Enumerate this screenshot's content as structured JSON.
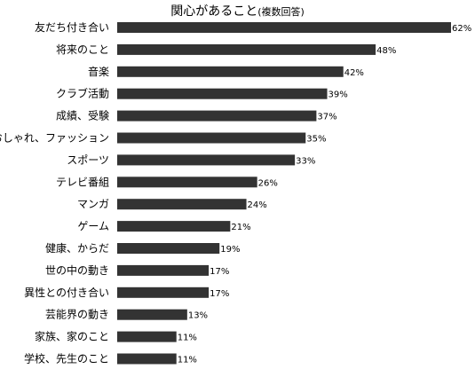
{
  "chart_data": {
    "type": "bar",
    "orientation": "horizontal",
    "title": "関心があること",
    "subtitle": "(複数回答)",
    "categories": [
      "友だち付き合い",
      "将来のこと",
      "音楽",
      "クラブ活動",
      "成績、受験",
      "おしゃれ、ファッション",
      "スポーツ",
      "テレビ番組",
      "マンガ",
      "ゲーム",
      "健康、からだ",
      "世の中の動き",
      "異性との付き合い",
      "芸能界の動き",
      "家族、家のこと",
      "学校、先生のこと"
    ],
    "values": [
      62,
      48,
      42,
      39,
      37,
      35,
      33,
      26,
      24,
      21,
      19,
      17,
      17,
      13,
      11,
      11
    ],
    "value_labels": [
      "62%",
      "48%",
      "42%",
      "39%",
      "37%",
      "35%",
      "33%",
      "26%",
      "24%",
      "21%",
      "19%",
      "17%",
      "17%",
      "13%",
      "11%",
      "11%"
    ],
    "unit": "%",
    "xlim": [
      0,
      62
    ],
    "grid": false,
    "legend": "none",
    "bar_color": "#333333"
  }
}
